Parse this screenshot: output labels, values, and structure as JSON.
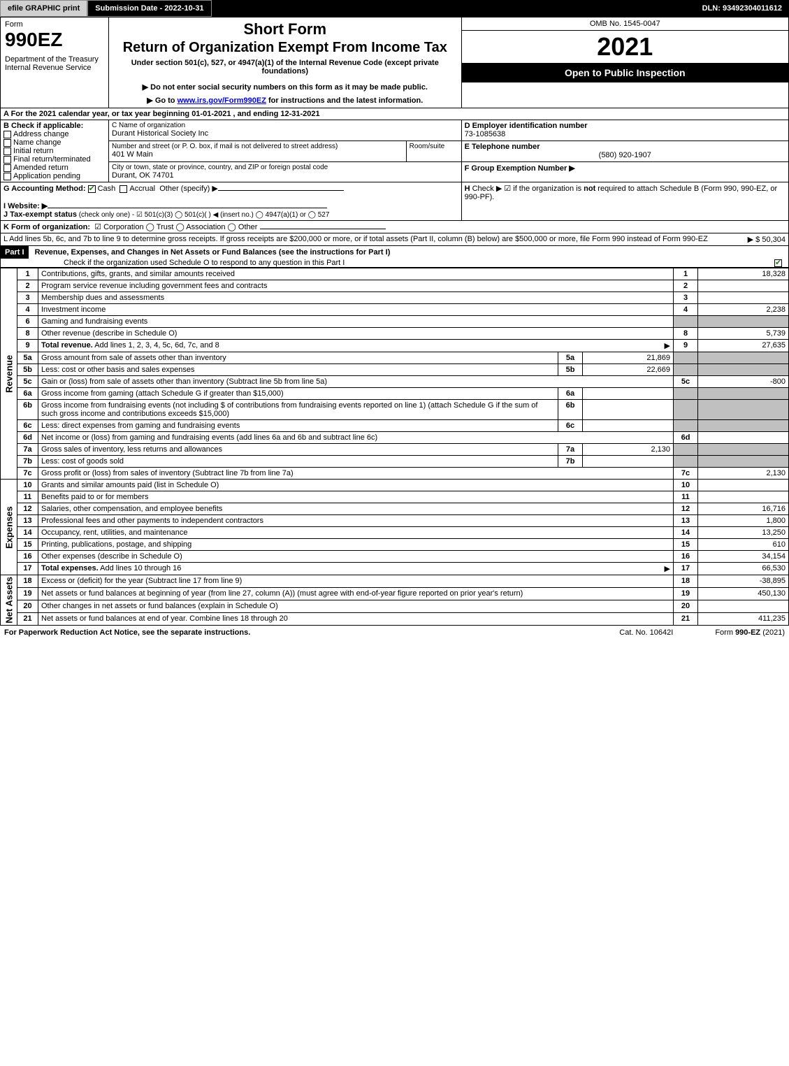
{
  "topbar": {
    "efile": "efile GRAPHIC print",
    "submission": "Submission Date - 2022-10-31",
    "dln": "DLN: 93492304011612"
  },
  "header": {
    "form_word": "Form",
    "form_num": "990EZ",
    "dept": "Department of the Treasury\nInternal Revenue Service",
    "short": "Short Form",
    "title": "Return of Organization Exempt From Income Tax",
    "under": "Under section 501(c), 527, or 4947(a)(1) of the Internal Revenue Code (except private foundations)",
    "donot": "▶ Do not enter social security numbers on this form as it may be made public.",
    "goto_pre": "▶ Go to ",
    "goto_link": "www.irs.gov/Form990EZ",
    "goto_post": " for instructions and the latest information.",
    "omb": "OMB No. 1545-0047",
    "year": "2021",
    "open": "Open to Public Inspection"
  },
  "A": {
    "text": "A  For the 2021 calendar year, or tax year beginning 01-01-2021 , and ending 12-31-2021"
  },
  "B": {
    "label": "B  Check if applicable:",
    "items": [
      "Address change",
      "Name change",
      "Initial return",
      "Final return/terminated",
      "Amended return",
      "Application pending"
    ]
  },
  "C": {
    "name_label": "C Name of organization",
    "name": "Durant Historical Society Inc",
    "street_label": "Number and street (or P. O. box, if mail is not delivered to street address)",
    "room_label": "Room/suite",
    "street": "401 W Main",
    "city_label": "City or town, state or province, country, and ZIP or foreign postal code",
    "city": "Durant, OK  74701"
  },
  "D": {
    "label": "D Employer identification number",
    "value": "73-1085638"
  },
  "E": {
    "label": "E Telephone number",
    "value": "(580) 920-1907"
  },
  "F": {
    "label": "F Group Exemption Number  ▶"
  },
  "G": {
    "label": "G Accounting Method:",
    "cash": "Cash",
    "accrual": "Accrual",
    "other": "Other (specify) ▶"
  },
  "H": {
    "label": "H",
    "text": "Check ▶ ☑ if the organization is ",
    "not": "not",
    "rest": " required to attach Schedule B (Form 990, 990-EZ, or 990-PF)."
  },
  "I": {
    "label": "I Website: ▶"
  },
  "J": {
    "label": "J Tax-exempt status",
    "rest": " (check only one) - ☑ 501(c)(3)  ◯ 501(c)(  ) ◀ (insert no.)  ◯ 4947(a)(1) or  ◯ 527"
  },
  "K": {
    "label": "K Form of organization:",
    "rest": "☑ Corporation   ◯ Trust   ◯ Association   ◯ Other"
  },
  "L": {
    "text": "L Add lines 5b, 6c, and 7b to line 9 to determine gross receipts. If gross receipts are $200,000 or more, or if total assets (Part II, column (B) below) are $500,000 or more, file Form 990 instead of Form 990-EZ",
    "amount": "▶ $ 50,304"
  },
  "part1": {
    "label": "Part I",
    "title": "Revenue, Expenses, and Changes in Net Assets or Fund Balances (see the instructions for Part I)",
    "checkline": "Check if the organization used Schedule O to respond to any question in this Part I"
  },
  "revenue": {
    "side": "Revenue",
    "lines": {
      "1": {
        "d": "Contributions, gifts, grants, and similar amounts received",
        "n": "1",
        "v": "18,328"
      },
      "2": {
        "d": "Program service revenue including government fees and contracts",
        "n": "2",
        "v": ""
      },
      "3": {
        "d": "Membership dues and assessments",
        "n": "3",
        "v": ""
      },
      "4": {
        "d": "Investment income",
        "n": "4",
        "v": "2,238"
      },
      "5a": {
        "d": "Gross amount from sale of assets other than inventory",
        "sub": "5a",
        "subv": "21,869"
      },
      "5b": {
        "d": "Less: cost or other basis and sales expenses",
        "sub": "5b",
        "subv": "22,669"
      },
      "5c": {
        "d": "Gain or (loss) from sale of assets other than inventory (Subtract line 5b from line 5a)",
        "n": "5c",
        "v": "-800"
      },
      "6": {
        "d": "Gaming and fundraising events"
      },
      "6a": {
        "d": "Gross income from gaming (attach Schedule G if greater than $15,000)",
        "sub": "6a",
        "subv": ""
      },
      "6b": {
        "d": "Gross income from fundraising events (not including $                    of contributions from fundraising events reported on line 1) (attach Schedule G if the sum of such gross income and contributions exceeds $15,000)",
        "sub": "6b",
        "subv": ""
      },
      "6c": {
        "d": "Less: direct expenses from gaming and fundraising events",
        "sub": "6c",
        "subv": ""
      },
      "6d": {
        "d": "Net income or (loss) from gaming and fundraising events (add lines 6a and 6b and subtract line 6c)",
        "n": "6d",
        "v": ""
      },
      "7a": {
        "d": "Gross sales of inventory, less returns and allowances",
        "sub": "7a",
        "subv": "2,130"
      },
      "7b": {
        "d": "Less: cost of goods sold",
        "sub": "7b",
        "subv": ""
      },
      "7c": {
        "d": "Gross profit or (loss) from sales of inventory (Subtract line 7b from line 7a)",
        "n": "7c",
        "v": "2,130"
      },
      "8": {
        "d": "Other revenue (describe in Schedule O)",
        "n": "8",
        "v": "5,739"
      },
      "9": {
        "d": "Total revenue. Add lines 1, 2, 3, 4, 5c, 6d, 7c, and 8",
        "n": "9",
        "v": "27,635",
        "bold": true,
        "arrow": true
      }
    }
  },
  "expenses": {
    "side": "Expenses",
    "lines": {
      "10": {
        "d": "Grants and similar amounts paid (list in Schedule O)",
        "n": "10",
        "v": ""
      },
      "11": {
        "d": "Benefits paid to or for members",
        "n": "11",
        "v": ""
      },
      "12": {
        "d": "Salaries, other compensation, and employee benefits",
        "n": "12",
        "v": "16,716"
      },
      "13": {
        "d": "Professional fees and other payments to independent contractors",
        "n": "13",
        "v": "1,800"
      },
      "14": {
        "d": "Occupancy, rent, utilities, and maintenance",
        "n": "14",
        "v": "13,250"
      },
      "15": {
        "d": "Printing, publications, postage, and shipping",
        "n": "15",
        "v": "610"
      },
      "16": {
        "d": "Other expenses (describe in Schedule O)",
        "n": "16",
        "v": "34,154"
      },
      "17": {
        "d": "Total expenses. Add lines 10 through 16",
        "n": "17",
        "v": "66,530",
        "bold": true,
        "arrow": true
      }
    }
  },
  "netassets": {
    "side": "Net Assets",
    "lines": {
      "18": {
        "d": "Excess or (deficit) for the year (Subtract line 17 from line 9)",
        "n": "18",
        "v": "-38,895"
      },
      "19": {
        "d": "Net assets or fund balances at beginning of year (from line 27, column (A)) (must agree with end-of-year figure reported on prior year's return)",
        "n": "19",
        "v": "450,130"
      },
      "20": {
        "d": "Other changes in net assets or fund balances (explain in Schedule O)",
        "n": "20",
        "v": ""
      },
      "21": {
        "d": "Net assets or fund balances at end of year. Combine lines 18 through 20",
        "n": "21",
        "v": "411,235"
      }
    }
  },
  "footer": {
    "left": "For Paperwork Reduction Act Notice, see the separate instructions.",
    "mid": "Cat. No. 10642I",
    "right_pre": "Form ",
    "right_bold": "990-EZ",
    "right_post": " (2021)"
  },
  "colors": {
    "black": "#000000",
    "grey": "#c0c0c0",
    "link": "#0000cc",
    "check": "#2a7a2a"
  }
}
